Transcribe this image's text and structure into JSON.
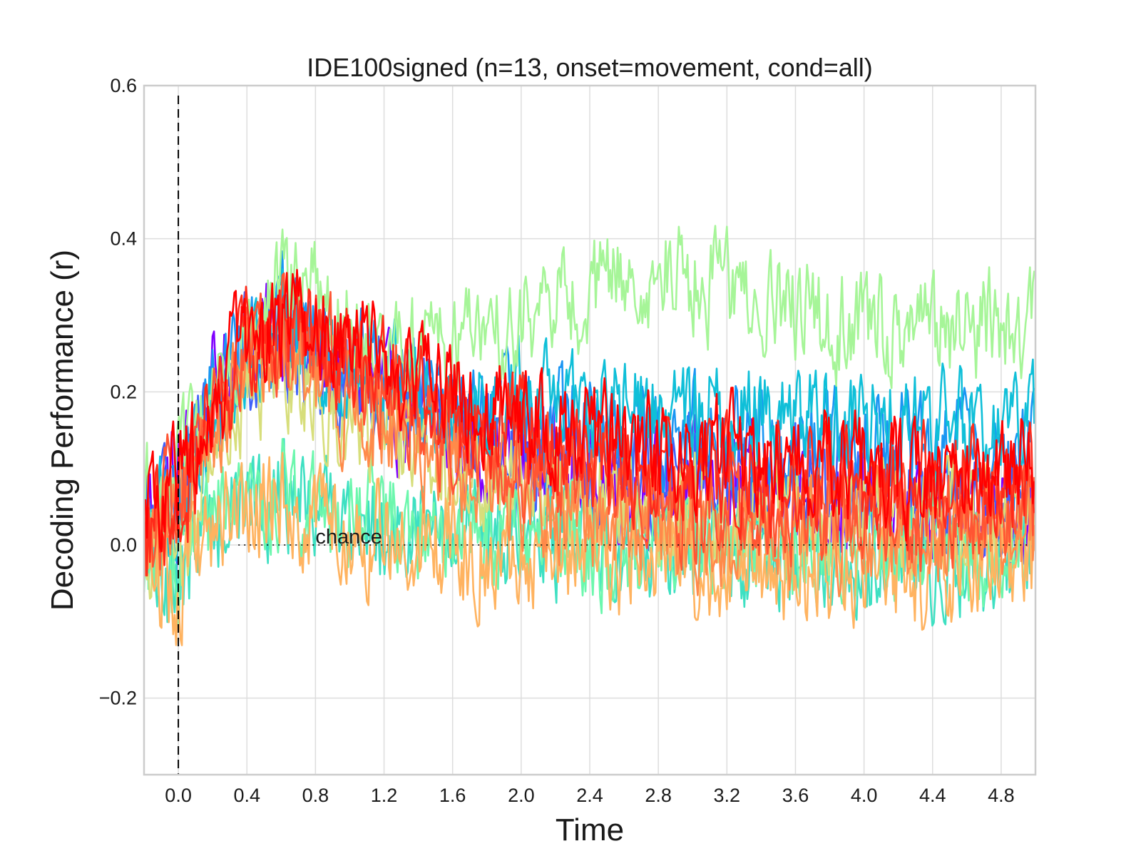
{
  "chart_data": {
    "type": "line",
    "title": "IDE100signed (n=13, onset=movement, cond=all)",
    "xlabel": "Time",
    "ylabel": "Decoding Performance (r)",
    "xlim": [
      -0.2,
      5.0
    ],
    "ylim": [
      -0.3,
      0.6
    ],
    "xticks": [
      0.0,
      0.4,
      0.8,
      1.2,
      1.6,
      2.0,
      2.4,
      2.8,
      3.2,
      3.6,
      4.0,
      4.4,
      4.8
    ],
    "xtick_labels": [
      "0.0",
      "0.4",
      "0.8",
      "1.2",
      "1.6",
      "2.0",
      "2.4",
      "2.8",
      "3.2",
      "3.6",
      "4.0",
      "4.4",
      "4.8"
    ],
    "yticks": [
      -0.2,
      0.0,
      0.2,
      0.4,
      0.6
    ],
    "ytick_labels": [
      "−0.2",
      "0.0",
      "0.2",
      "0.4",
      "0.6"
    ],
    "grid": true,
    "legend": "none",
    "annotations": [
      {
        "text": "chance",
        "x": 0.8,
        "y": 0.0
      }
    ],
    "reference_lines": [
      {
        "orientation": "vertical",
        "x": 0.0,
        "style": "dashed",
        "color": "#000000"
      },
      {
        "orientation": "horizontal",
        "y": 0.0,
        "style": "dotted",
        "color": "#000000",
        "x_range": [
          0.35,
          4.95
        ]
      }
    ],
    "series": [
      {
        "color": "#8000ff",
        "x": [
          -0.2,
          0.0,
          0.2,
          0.4,
          0.6,
          0.8,
          1.0,
          1.2,
          1.4,
          1.6,
          1.8,
          2.0,
          2.4,
          2.8,
          3.2,
          3.6,
          4.0,
          4.4,
          4.8,
          5.0
        ],
        "y": [
          0.05,
          0.08,
          0.2,
          0.27,
          0.27,
          0.24,
          0.21,
          0.19,
          0.16,
          0.14,
          0.12,
          0.1,
          0.09,
          0.08,
          0.07,
          0.06,
          0.05,
          0.04,
          0.03,
          0.05
        ]
      },
      {
        "color": "#4062fa",
        "x": [
          -0.2,
          0.0,
          0.2,
          0.4,
          0.6,
          0.8,
          1.0,
          1.2,
          1.4,
          1.6,
          1.8,
          2.0,
          2.4,
          2.8,
          3.2,
          3.6,
          4.0,
          4.4,
          4.8,
          5.0
        ],
        "y": [
          0.03,
          0.05,
          0.18,
          0.25,
          0.27,
          0.24,
          0.22,
          0.2,
          0.17,
          0.15,
          0.13,
          0.11,
          0.1,
          0.1,
          0.09,
          0.08,
          0.07,
          0.06,
          0.06,
          0.06
        ]
      },
      {
        "color": "#1996f3",
        "x": [
          -0.2,
          0.0,
          0.2,
          0.4,
          0.6,
          0.8,
          1.0,
          1.2,
          1.4,
          1.6,
          1.8,
          2.0,
          2.4,
          2.8,
          3.2,
          3.6,
          4.0,
          4.4,
          4.8,
          5.0
        ],
        "y": [
          0.02,
          0.04,
          0.19,
          0.28,
          0.3,
          0.27,
          0.24,
          0.22,
          0.2,
          0.18,
          0.17,
          0.16,
          0.15,
          0.14,
          0.14,
          0.13,
          0.13,
          0.12,
          0.12,
          0.13
        ]
      },
      {
        "color": "#0fbfd8",
        "x": [
          -0.2,
          0.0,
          0.2,
          0.4,
          0.6,
          0.8,
          1.0,
          1.2,
          1.4,
          1.6,
          1.8,
          2.0,
          2.4,
          2.8,
          3.2,
          3.6,
          4.0,
          4.4,
          4.8,
          5.0
        ],
        "y": [
          0.04,
          0.05,
          0.17,
          0.24,
          0.27,
          0.25,
          0.23,
          0.22,
          0.21,
          0.2,
          0.19,
          0.19,
          0.18,
          0.18,
          0.17,
          0.17,
          0.16,
          0.16,
          0.16,
          0.17
        ]
      },
      {
        "color": "#3ee0c2",
        "x": [
          -0.2,
          0.0,
          0.2,
          0.4,
          0.6,
          0.8,
          1.0,
          1.2,
          1.4,
          1.6,
          1.8,
          2.0,
          2.4,
          2.8,
          3.2,
          3.6,
          4.0,
          4.4,
          4.8,
          5.0
        ],
        "y": [
          -0.02,
          -0.04,
          0.03,
          0.06,
          0.06,
          0.05,
          0.04,
          0.03,
          0.02,
          0.02,
          0.01,
          0.01,
          0.0,
          0.0,
          -0.01,
          -0.01,
          -0.02,
          -0.02,
          -0.02,
          -0.01
        ]
      },
      {
        "color": "#6cf7ad",
        "x": [
          -0.2,
          0.0,
          0.2,
          0.4,
          0.6,
          0.8,
          1.0,
          1.2,
          1.4,
          1.6,
          1.8,
          2.0,
          2.4,
          2.8,
          3.2,
          3.6,
          4.0,
          4.4,
          4.8,
          5.0
        ],
        "y": [
          0.0,
          -0.03,
          0.02,
          0.05,
          0.07,
          0.06,
          0.05,
          0.04,
          0.03,
          0.02,
          0.02,
          0.01,
          0.0,
          0.0,
          0.0,
          -0.01,
          -0.01,
          -0.01,
          -0.01,
          0.0
        ]
      },
      {
        "color": "#a6f598",
        "x": [
          -0.2,
          0.0,
          0.2,
          0.4,
          0.6,
          0.8,
          1.0,
          1.2,
          1.4,
          1.6,
          1.8,
          2.0,
          2.4,
          2.8,
          3.2,
          3.6,
          4.0,
          4.4,
          4.8,
          5.0
        ],
        "y": [
          0.05,
          0.07,
          0.18,
          0.27,
          0.33,
          0.33,
          0.3,
          0.27,
          0.26,
          0.26,
          0.27,
          0.29,
          0.33,
          0.36,
          0.33,
          0.3,
          0.28,
          0.27,
          0.29,
          0.28
        ]
      },
      {
        "color": "#d7de7b",
        "x": [
          -0.2,
          0.0,
          0.2,
          0.4,
          0.6,
          0.8,
          1.0,
          1.2,
          1.4,
          1.6,
          1.8,
          2.0,
          2.4,
          2.8,
          3.2,
          3.6,
          4.0,
          4.4,
          4.8,
          5.0
        ],
        "y": [
          0.03,
          0.0,
          0.12,
          0.2,
          0.22,
          0.2,
          0.17,
          0.14,
          0.12,
          0.1,
          0.08,
          0.07,
          0.06,
          0.05,
          0.05,
          0.04,
          0.04,
          0.03,
          0.03,
          0.04
        ]
      },
      {
        "color": "#ffb360",
        "x": [
          -0.2,
          0.0,
          0.2,
          0.4,
          0.6,
          0.8,
          1.0,
          1.2,
          1.4,
          1.6,
          1.8,
          2.0,
          2.4,
          2.8,
          3.2,
          3.6,
          4.0,
          4.4,
          4.8,
          5.0
        ],
        "y": [
          0.0,
          -0.05,
          0.02,
          0.05,
          0.05,
          0.04,
          0.02,
          0.01,
          0.0,
          0.0,
          -0.01,
          -0.01,
          -0.02,
          -0.02,
          -0.03,
          -0.03,
          -0.03,
          -0.04,
          -0.03,
          -0.02
        ]
      },
      {
        "color": "#ff8a4a",
        "x": [
          -0.2,
          0.0,
          0.2,
          0.4,
          0.6,
          0.8,
          1.0,
          1.2,
          1.4,
          1.6,
          1.8,
          2.0,
          2.4,
          2.8,
          3.2,
          3.6,
          4.0,
          4.4,
          4.8,
          5.0
        ],
        "y": [
          0.02,
          0.04,
          0.15,
          0.22,
          0.24,
          0.22,
          0.18,
          0.15,
          0.12,
          0.1,
          0.08,
          0.06,
          0.04,
          0.03,
          0.02,
          0.02,
          0.01,
          0.01,
          0.01,
          0.02
        ]
      },
      {
        "color": "#ff5533",
        "x": [
          -0.2,
          0.0,
          0.2,
          0.4,
          0.6,
          0.8,
          1.0,
          1.2,
          1.4,
          1.6,
          1.8,
          2.0,
          2.4,
          2.8,
          3.2,
          3.6,
          4.0,
          4.4,
          4.8,
          5.0
        ],
        "y": [
          0.03,
          0.05,
          0.16,
          0.25,
          0.27,
          0.26,
          0.23,
          0.2,
          0.17,
          0.14,
          0.12,
          0.1,
          0.08,
          0.06,
          0.05,
          0.05,
          0.04,
          0.04,
          0.04,
          0.05
        ]
      },
      {
        "color": "#ff2b1a",
        "x": [
          -0.2,
          0.0,
          0.2,
          0.4,
          0.6,
          0.8,
          1.0,
          1.2,
          1.4,
          1.6,
          1.8,
          2.0,
          2.4,
          2.8,
          3.2,
          3.6,
          4.0,
          4.4,
          4.8,
          5.0
        ],
        "y": [
          0.04,
          0.06,
          0.17,
          0.26,
          0.28,
          0.27,
          0.25,
          0.22,
          0.19,
          0.17,
          0.15,
          0.14,
          0.12,
          0.11,
          0.1,
          0.09,
          0.08,
          0.08,
          0.08,
          0.09
        ]
      },
      {
        "color": "#ff0000",
        "x": [
          -0.2,
          0.0,
          0.2,
          0.4,
          0.6,
          0.8,
          1.0,
          1.2,
          1.4,
          1.6,
          1.8,
          2.0,
          2.4,
          2.8,
          3.2,
          3.6,
          4.0,
          4.4,
          4.8,
          5.0
        ],
        "y": [
          0.04,
          0.07,
          0.18,
          0.27,
          0.29,
          0.29,
          0.27,
          0.24,
          0.21,
          0.19,
          0.17,
          0.16,
          0.14,
          0.13,
          0.12,
          0.11,
          0.1,
          0.09,
          0.1,
          0.11
        ]
      }
    ]
  }
}
